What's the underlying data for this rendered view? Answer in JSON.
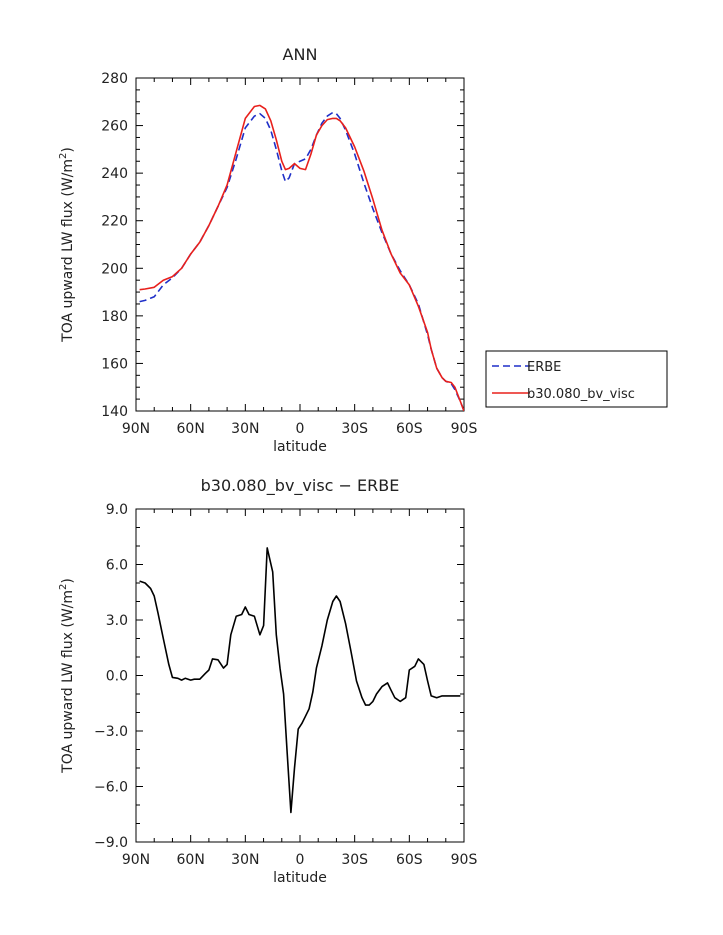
{
  "chart_data": [
    {
      "type": "line",
      "title": "ANN",
      "xlabel": "latitude",
      "ylabel": "TOA upward LW flux (W/m",
      "ylabel_sup": "2",
      "ylabel_end": ")",
      "xlim": [
        90,
        -90
      ],
      "ylim": [
        140,
        280
      ],
      "x_ticks": [
        90,
        60,
        30,
        0,
        -30,
        -60,
        -90
      ],
      "x_tick_labels": [
        "90N",
        "60N",
        "30N",
        "0",
        "30S",
        "60S",
        "90S"
      ],
      "y_ticks": [
        140,
        160,
        180,
        200,
        220,
        240,
        260,
        280
      ],
      "y_tick_labels": [
        "140",
        "160",
        "180",
        "200",
        "220",
        "240",
        "260",
        "280"
      ],
      "legend_position": "right",
      "series": [
        {
          "name": "ERBE",
          "color": "#1f2fc8",
          "style": "dashed",
          "x": [
            88,
            85,
            80,
            75,
            70,
            65,
            60,
            55,
            50,
            45,
            40,
            35,
            30,
            25,
            22,
            19,
            16,
            13,
            10,
            8,
            6,
            3,
            0,
            -3,
            -6,
            -9,
            -12,
            -15,
            -18,
            -20,
            -22,
            -25,
            -30,
            -35,
            -40,
            -45,
            -50,
            -55,
            -60,
            -65,
            -70,
            -72,
            -75,
            -78,
            -80,
            -83,
            -85,
            -88,
            -90
          ],
          "y": [
            186,
            186.5,
            188,
            193,
            196,
            200,
            206,
            211,
            218,
            226,
            234,
            246,
            259,
            264,
            265,
            263,
            258,
            250,
            241,
            236.5,
            238,
            244,
            245,
            246,
            250,
            256,
            261,
            264,
            265.5,
            265,
            263,
            258,
            248,
            236,
            225,
            215,
            206,
            199,
            193,
            185,
            172,
            166,
            158,
            154,
            152.5,
            151.5,
            149,
            144,
            140
          ]
        },
        {
          "name": "b30.080_bv_visc",
          "color": "#e8201c",
          "style": "solid",
          "x": [
            88,
            85,
            80,
            75,
            70,
            65,
            60,
            55,
            50,
            45,
            40,
            35,
            30,
            25,
            22,
            19,
            16,
            13,
            10,
            8,
            6,
            3,
            0,
            -3,
            -6,
            -9,
            -12,
            -15,
            -18,
            -20,
            -22,
            -25,
            -30,
            -35,
            -40,
            -45,
            -50,
            -55,
            -60,
            -65,
            -70,
            -72,
            -75,
            -78,
            -80,
            -83,
            -85,
            -88,
            -90
          ],
          "y": [
            191,
            191.3,
            192,
            195,
            196.5,
            200,
            206,
            211,
            218,
            226,
            235,
            249,
            263,
            268,
            268.5,
            267,
            262,
            254,
            245,
            241.5,
            242,
            244,
            242,
            241.5,
            248,
            256,
            260,
            262.5,
            263,
            263,
            262,
            259,
            251,
            241,
            229,
            216,
            206,
            198,
            193,
            184,
            173,
            166,
            158,
            154,
            152.5,
            152,
            150,
            144,
            140
          ]
        }
      ]
    },
    {
      "type": "line",
      "title": "b30.080_bv_visc − ERBE",
      "xlabel": "latitude",
      "ylabel": "TOA upward LW flux (W/m",
      "ylabel_sup": "2",
      "ylabel_end": ")",
      "xlim": [
        90,
        -90
      ],
      "ylim": [
        -9,
        9
      ],
      "x_ticks": [
        90,
        60,
        30,
        0,
        -30,
        -60,
        -90
      ],
      "x_tick_labels": [
        "90N",
        "60N",
        "30N",
        "0",
        "30S",
        "60S",
        "90S"
      ],
      "y_ticks": [
        -9,
        -6,
        -3,
        0,
        3,
        6,
        9
      ],
      "y_tick_labels": [
        "−9.0",
        "−6.0",
        "−3.0",
        "0.0",
        "3.0",
        "6.0",
        "9.0"
      ],
      "series": [
        {
          "color": "#000000",
          "style": "solid",
          "x": [
            88,
            85,
            82,
            80,
            78,
            75,
            72,
            70,
            67,
            65,
            63,
            60,
            58,
            55,
            52,
            50,
            48,
            45,
            42,
            40,
            38,
            35,
            32,
            30,
            28,
            25,
            22,
            20,
            18,
            15,
            13,
            11,
            9,
            7,
            5,
            3,
            1,
            -1,
            -3,
            -5,
            -7,
            -9,
            -12,
            -15,
            -18,
            -20,
            -22,
            -25,
            -28,
            -31,
            -34,
            -36,
            -38,
            -40,
            -42,
            -45,
            -48,
            -50,
            -52,
            -55,
            -58,
            -60,
            -63,
            -65,
            -68,
            -70,
            -72,
            -75,
            -78,
            -80,
            -82,
            -84,
            -86,
            -88
          ],
          "y": [
            5.1,
            5.0,
            4.7,
            4.3,
            3.4,
            2.0,
            0.6,
            -0.1,
            -0.15,
            -0.25,
            -0.15,
            -0.25,
            -0.2,
            -0.2,
            0.1,
            0.3,
            0.9,
            0.85,
            0.4,
            0.6,
            2.2,
            3.2,
            3.3,
            3.7,
            3.3,
            3.2,
            2.2,
            2.7,
            6.9,
            5.6,
            2.2,
            0.4,
            -1.0,
            -4.2,
            -7.4,
            -5.0,
            -2.9,
            -2.6,
            -2.2,
            -1.8,
            -0.9,
            0.4,
            1.6,
            3.0,
            4.0,
            4.3,
            4.0,
            2.8,
            1.3,
            -0.3,
            -1.2,
            -1.6,
            -1.6,
            -1.4,
            -1.0,
            -0.6,
            -0.4,
            -0.8,
            -1.2,
            -1.4,
            -1.2,
            0.3,
            0.5,
            0.9,
            0.6,
            -0.3,
            -1.1,
            -1.2,
            -1.1,
            -1.1,
            -1.1,
            -1.1,
            -1.1,
            -1.1
          ]
        }
      ]
    }
  ]
}
